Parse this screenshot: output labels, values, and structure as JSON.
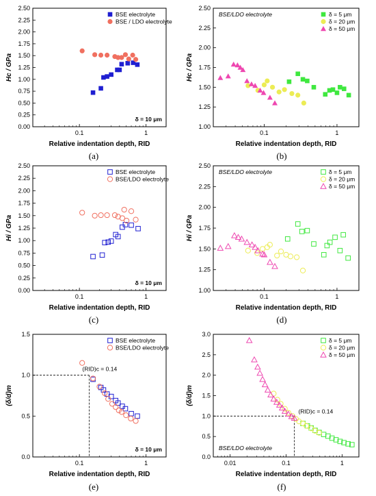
{
  "chart_data": [
    {
      "type": "scatter",
      "log_x": true,
      "xlabel": "Relative indentation depth, RID",
      "ylabel": "Hc / GPa",
      "xlim": [
        0.02,
        2
      ],
      "ylim": [
        0,
        2.5
      ],
      "xticks": [
        0.1,
        1
      ],
      "yticks": [
        0,
        0.25,
        0.5,
        0.75,
        1,
        1.25,
        1.5,
        1.75,
        2,
        2.25,
        2.5
      ],
      "ytick_labels": [
        "0.00",
        "0.25",
        "0.50",
        "0.75",
        "1.00",
        "1.25",
        "1.50",
        "1.75",
        "2.00",
        "2.25",
        "2.50"
      ],
      "annotation": "δ = 10 μm",
      "caption": "(a)",
      "legend_position": "top-right",
      "series": [
        {
          "name": "BSE electrolyte",
          "marker": "square",
          "filled": true,
          "color": "#1f1fd1",
          "x": [
            0.16,
            0.21,
            0.23,
            0.26,
            0.3,
            0.37,
            0.4,
            0.43,
            0.53,
            0.64,
            0.74
          ],
          "y": [
            0.72,
            0.81,
            1.04,
            1.06,
            1.1,
            1.2,
            1.2,
            1.32,
            1.34,
            1.35,
            1.31
          ]
        },
        {
          "name": "BSE / LDO electrolyte",
          "marker": "circle",
          "filled": true,
          "color": "#f07060",
          "x": [
            0.11,
            0.17,
            0.21,
            0.26,
            0.34,
            0.38,
            0.43,
            0.49,
            0.55,
            0.63,
            0.7
          ],
          "y": [
            1.6,
            1.52,
            1.51,
            1.51,
            1.48,
            1.46,
            1.46,
            1.52,
            1.43,
            1.51,
            1.42
          ]
        }
      ]
    },
    {
      "type": "scatter",
      "log_x": true,
      "xlabel": "Relative indentation depth, RID",
      "ylabel": "Hc / GPa",
      "xlim": [
        0.02,
        2
      ],
      "ylim": [
        1,
        2.5
      ],
      "xticks": [
        0.1,
        1
      ],
      "yticks": [
        1,
        1.25,
        1.5,
        1.75,
        2,
        2.25,
        2.5
      ],
      "ytick_labels": [
        "1.00",
        "1.25",
        "1.50",
        "1.75",
        "2.00",
        "2.25",
        "2.50"
      ],
      "annotation": "BSE/LDO electrolyte",
      "caption": "(b)",
      "legend_position": "top-right",
      "series": [
        {
          "name": "δ = 5 μm",
          "marker": "square",
          "filled": true,
          "color": "#3fe83f",
          "x": [
            0.22,
            0.29,
            0.34,
            0.39,
            0.48,
            0.69,
            0.79,
            0.88,
            1.0,
            1.1,
            1.25,
            1.45
          ],
          "y": [
            1.57,
            1.67,
            1.6,
            1.58,
            1.5,
            1.41,
            1.46,
            1.47,
            1.43,
            1.5,
            1.48,
            1.4
          ]
        },
        {
          "name": "δ = 20 μm",
          "marker": "circle",
          "filled": true,
          "color": "#ecec55",
          "x": [
            0.06,
            0.082,
            0.1,
            0.11,
            0.13,
            0.16,
            0.19,
            0.24,
            0.29,
            0.35
          ],
          "y": [
            1.52,
            1.46,
            1.53,
            1.58,
            1.5,
            1.44,
            1.47,
            1.42,
            1.4,
            1.3
          ]
        },
        {
          "name": "δ = 50 μm",
          "marker": "triangle",
          "filled": true,
          "color": "#ee47b0",
          "x": [
            0.025,
            0.032,
            0.038,
            0.043,
            0.047,
            0.051,
            0.058,
            0.067,
            0.075,
            0.088,
            0.098,
            0.12,
            0.14
          ],
          "y": [
            1.62,
            1.64,
            1.79,
            1.78,
            1.75,
            1.72,
            1.58,
            1.54,
            1.52,
            1.46,
            1.43,
            1.37,
            1.3
          ]
        }
      ]
    },
    {
      "type": "scatter",
      "log_x": true,
      "xlabel": "Relative indentation depth, RID",
      "ylabel": "Hi / GPa",
      "xlim": [
        0.02,
        2
      ],
      "ylim": [
        0,
        2.5
      ],
      "xticks": [
        0.1,
        1
      ],
      "yticks": [
        0,
        0.25,
        0.5,
        0.75,
        1,
        1.25,
        1.5,
        1.75,
        2,
        2.25,
        2.5
      ],
      "ytick_labels": [
        "0.00",
        "0.25",
        "0.50",
        "0.75",
        "1.00",
        "1.25",
        "1.50",
        "1.75",
        "2.00",
        "2.25",
        "2.50"
      ],
      "annotation": "δ = 10 μm",
      "caption": "(c)",
      "legend_position": "top-right",
      "series": [
        {
          "name": "BSE electrolyte",
          "marker": "square",
          "filled": false,
          "color": "#1f1fd1",
          "x": [
            0.16,
            0.22,
            0.24,
            0.27,
            0.3,
            0.35,
            0.38,
            0.44,
            0.49,
            0.6,
            0.76
          ],
          "y": [
            0.68,
            0.71,
            0.96,
            0.97,
            0.99,
            1.12,
            1.08,
            1.27,
            1.32,
            1.31,
            1.24
          ]
        },
        {
          "name": "BSE/LDO electrolyte",
          "marker": "circle",
          "filled": false,
          "color": "#f07060",
          "x": [
            0.11,
            0.17,
            0.21,
            0.26,
            0.34,
            0.38,
            0.44,
            0.47,
            0.51,
            0.6,
            0.7
          ],
          "y": [
            1.56,
            1.5,
            1.51,
            1.51,
            1.51,
            1.48,
            1.45,
            1.62,
            1.4,
            1.59,
            1.42
          ]
        }
      ]
    },
    {
      "type": "scatter",
      "log_x": true,
      "xlabel": "Relative indentation depth, RID",
      "ylabel": "Hi / GPa",
      "xlim": [
        0.02,
        2
      ],
      "ylim": [
        1,
        2.5
      ],
      "xticks": [
        0.1,
        1
      ],
      "yticks": [
        1,
        1.25,
        1.5,
        1.75,
        2,
        2.25,
        2.5
      ],
      "ytick_labels": [
        "1.00",
        "1.25",
        "1.50",
        "1.75",
        "2.00",
        "2.25",
        "2.50"
      ],
      "annotation": "BSE/LDO electrolyte",
      "caption": "(d)",
      "legend_position": "top-right",
      "series": [
        {
          "name": "δ = 5 μm",
          "marker": "square",
          "filled": false,
          "color": "#3fe83f",
          "x": [
            0.21,
            0.29,
            0.33,
            0.39,
            0.48,
            0.66,
            0.73,
            0.8,
            0.94,
            1.1,
            1.22,
            1.42
          ],
          "y": [
            1.62,
            1.8,
            1.71,
            1.72,
            1.56,
            1.43,
            1.54,
            1.58,
            1.64,
            1.48,
            1.67,
            1.39
          ]
        },
        {
          "name": "δ = 20 μm",
          "marker": "circle",
          "filled": false,
          "color": "#ecec55",
          "x": [
            0.06,
            0.08,
            0.095,
            0.11,
            0.12,
            0.15,
            0.17,
            0.2,
            0.23,
            0.28,
            0.34
          ],
          "y": [
            1.48,
            1.45,
            1.5,
            1.52,
            1.55,
            1.42,
            1.47,
            1.43,
            1.41,
            1.4,
            1.24
          ]
        },
        {
          "name": "δ = 50 μm",
          "marker": "triangle",
          "filled": false,
          "color": "#ee47b0",
          "x": [
            0.025,
            0.032,
            0.039,
            0.044,
            0.049,
            0.058,
            0.068,
            0.075,
            0.082,
            0.095,
            0.1,
            0.12,
            0.14
          ],
          "y": [
            1.51,
            1.53,
            1.66,
            1.64,
            1.62,
            1.58,
            1.55,
            1.52,
            1.48,
            1.44,
            1.43,
            1.34,
            1.29
          ]
        }
      ]
    },
    {
      "type": "scatter",
      "log_x": true,
      "xlabel": "Relative indentation depth, RID",
      "ylabel": "(δ/d)m",
      "xlim": [
        0.02,
        2
      ],
      "ylim": [
        0,
        1.5
      ],
      "xticks": [
        0.1,
        1
      ],
      "yticks": [
        0,
        0.5,
        1,
        1.5
      ],
      "ytick_labels": [
        "0.0",
        "0.5",
        "1.0",
        "1.5"
      ],
      "annotation": "δ = 10 μm",
      "caption": "(e)",
      "legend_position": "top-right",
      "rid_c_label": "(RID)c = 0.14",
      "rid_c": 0.14,
      "series": [
        {
          "name": "BSE electrolyte",
          "marker": "square",
          "filled": false,
          "color": "#1f1fd1",
          "x": [
            0.16,
            0.21,
            0.23,
            0.26,
            0.3,
            0.35,
            0.38,
            0.44,
            0.49,
            0.6,
            0.74
          ],
          "y": [
            0.95,
            0.85,
            0.82,
            0.77,
            0.74,
            0.69,
            0.66,
            0.62,
            0.59,
            0.53,
            0.5
          ]
        },
        {
          "name": "BSE/LDO electrolyte",
          "marker": "circle",
          "filled": false,
          "color": "#f07060",
          "x": [
            0.11,
            0.16,
            0.2,
            0.24,
            0.27,
            0.31,
            0.35,
            0.39,
            0.43,
            0.5,
            0.59,
            0.7
          ],
          "y": [
            1.15,
            0.96,
            0.86,
            0.78,
            0.71,
            0.65,
            0.61,
            0.57,
            0.55,
            0.51,
            0.47,
            0.44
          ]
        }
      ]
    },
    {
      "type": "scatter",
      "log_x": true,
      "xlabel": "Relative indentation depth, RID",
      "ylabel": "(δ/d)m",
      "xlim": [
        0.005,
        2
      ],
      "ylim": [
        0,
        3
      ],
      "xticks": [
        0.01,
        0.1,
        1
      ],
      "yticks": [
        0,
        0.5,
        1,
        1.5,
        2,
        2.5,
        3
      ],
      "ytick_labels": [
        "0.0",
        "0.5",
        "1.0",
        "1.5",
        "2.0",
        "2.5",
        "3.0"
      ],
      "annotation": "BSE/LDO electrolyte",
      "caption": "(f)",
      "legend_position": "top-right",
      "rid_c_label": "(RID)c = 0.14",
      "rid_c": 0.14,
      "series": [
        {
          "name": "δ = 5 μm",
          "marker": "square",
          "filled": false,
          "color": "#3fe83f",
          "x": [
            0.2,
            0.24,
            0.28,
            0.33,
            0.39,
            0.47,
            0.56,
            0.66,
            0.78,
            0.92,
            1.08,
            1.28,
            1.5
          ],
          "y": [
            0.82,
            0.76,
            0.71,
            0.65,
            0.6,
            0.55,
            0.51,
            0.46,
            0.42,
            0.38,
            0.35,
            0.32,
            0.3
          ]
        },
        {
          "name": "δ = 20 μm",
          "marker": "circle",
          "filled": false,
          "color": "#ecec55",
          "x": [
            0.06,
            0.07,
            0.08,
            0.095,
            0.11,
            0.13,
            0.15,
            0.17,
            0.2,
            0.23,
            0.28,
            0.33,
            0.39
          ],
          "y": [
            1.55,
            1.4,
            1.3,
            1.18,
            1.08,
            1.0,
            0.93,
            0.87,
            0.82,
            0.76,
            0.7,
            0.64,
            0.59
          ]
        },
        {
          "name": "δ = 50 μm",
          "marker": "triangle",
          "filled": false,
          "color": "#ee47b0",
          "x": [
            0.022,
            0.027,
            0.031,
            0.034,
            0.038,
            0.042,
            0.047,
            0.053,
            0.06,
            0.068,
            0.076,
            0.085,
            0.095,
            0.11,
            0.125,
            0.14
          ],
          "y": [
            2.85,
            2.38,
            2.2,
            2.05,
            1.9,
            1.77,
            1.64,
            1.52,
            1.42,
            1.34,
            1.27,
            1.2,
            1.12,
            1.05,
            0.99,
            0.95
          ]
        }
      ]
    }
  ]
}
